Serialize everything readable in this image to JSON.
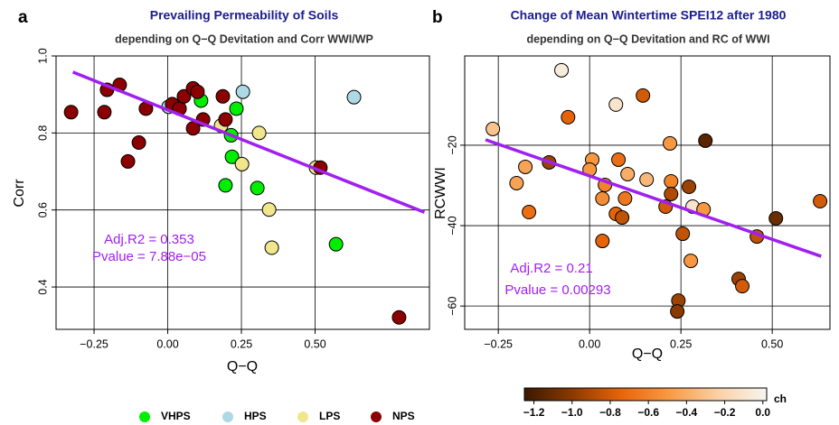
{
  "chart_data": [
    {
      "type": "scatter",
      "panel": "a",
      "title": "Prevailing Permeability of Soils",
      "subtitle": "depending on Q−Q Devitation and Corr WWI/WP",
      "x_label": "Q−Q",
      "y_label": "Corr",
      "xlim": [
        -0.379,
        0.888
      ],
      "ylim": [
        0.29,
        1.0
      ],
      "xticks": [
        {
          "value": -0.25,
          "label": "−0.25"
        },
        {
          "value": 0,
          "label": "0.00"
        },
        {
          "value": 0.25,
          "label": "0.25"
        },
        {
          "value": 0.5,
          "label": "0.50"
        }
      ],
      "yticks": [
        0.4,
        0.6,
        0.8,
        {
          "value": 1.0,
          "label": "1.0"
        }
      ],
      "grid": true,
      "series": [
        {
          "name": "VHPS",
          "color": "#00ee00",
          "x": [
            0.113,
            0.233,
            0.215,
            0.218,
            0.196,
            0.304,
            0.571
          ],
          "y": [
            0.884,
            0.863,
            0.794,
            0.738,
            0.664,
            0.657,
            0.511
          ]
        },
        {
          "name": "HPS",
          "color": "#add8e6",
          "x": [
            0.003,
            0.255,
            0.632
          ],
          "y": [
            0.868,
            0.907,
            0.893
          ]
        },
        {
          "name": "LPS",
          "color": "#f0e68c",
          "x": [
            0.181,
            0.31,
            0.252,
            0.344,
            0.353,
            0.503
          ],
          "y": [
            0.819,
            0.8,
            0.719,
            0.601,
            0.502,
            0.71
          ]
        },
        {
          "name": "NPS",
          "color": "#8b0000",
          "x": [
            -0.328,
            -0.206,
            -0.163,
            -0.215,
            -0.074,
            -0.098,
            -0.135,
            0.015,
            0.04,
            0.055,
            0.086,
            0.101,
            0.086,
            0.12,
            0.187,
            0.196,
            0.518,
            0.785
          ],
          "y": [
            0.854,
            0.912,
            0.925,
            0.854,
            0.863,
            0.775,
            0.726,
            0.875,
            0.863,
            0.895,
            0.916,
            0.907,
            0.812,
            0.835,
            0.895,
            0.835,
            0.71,
            0.321
          ]
        }
      ],
      "fit": {
        "color": "#a020f0",
        "x": [
          -0.322,
          0.871
        ],
        "y": [
          0.958,
          0.594
        ]
      },
      "annotations": [
        "Adj.R2 = 0.353",
        "Pvalue = 7.88e−05"
      ]
    },
    {
      "type": "scatter",
      "panel": "b",
      "title": "Change of Mean Wintertime SPEI12 after 1980",
      "subtitle": "depending on Q−Q Devitation and RC of WWI",
      "x_label": "Q−Q",
      "y_label": "RCWWI",
      "xlim": [
        -0.342,
        0.658
      ],
      "ylim": [
        -65.8,
        2.2
      ],
      "xticks": [
        {
          "value": -0.25,
          "label": "−0.25"
        },
        {
          "value": 0,
          "label": "0.00"
        },
        {
          "value": 0.25,
          "label": "0.25"
        },
        {
          "value": 0.5,
          "label": "0.50"
        }
      ],
      "yticks": [
        {
          "value": -20,
          "label": "−20"
        },
        {
          "value": -40,
          "label": "−40"
        },
        {
          "value": -60,
          "label": "−60"
        }
      ],
      "grid": true,
      "series": [
        {
          "x": [
            -0.077,
            -0.265,
            -0.059,
            0.072,
            0.146,
            0.317,
            0.22,
            -0.111,
            -0.176,
            -0.2,
            0.007,
            0.0,
            0.079,
            0.104,
            0.156,
            0.223,
            0.272,
            0.223,
            0.042,
            0.035,
            0.097,
            -0.166,
            0.072,
            0.089,
            0.208,
            0.282,
            0.312,
            0.51,
            0.631,
            0.035,
            0.255,
            0.458,
            0.277,
            0.243,
            0.24,
            0.408,
            0.418
          ],
          "y": [
            -1.35,
            -15.96,
            -13.03,
            -9.89,
            -7.64,
            -18.88,
            -19.55,
            -24.27,
            -25.39,
            -29.44,
            -23.6,
            -26.07,
            -23.6,
            -27.19,
            -28.54,
            -28.99,
            -30.34,
            -32.13,
            -29.89,
            -33.26,
            -33.26,
            -36.63,
            -37.08,
            -37.98,
            -35.28,
            -35.28,
            -35.96,
            -38.2,
            -33.93,
            -43.82,
            -42.02,
            -42.7,
            -48.76,
            -58.65,
            -61.35,
            -53.26,
            -55.06
          ],
          "ch": [
            -0.05,
            -0.3,
            -0.75,
            -0.1,
            -0.8,
            -1.15,
            -0.5,
            -0.95,
            -0.45,
            -0.45,
            -0.5,
            -0.5,
            -0.7,
            -0.4,
            -0.35,
            -0.6,
            -0.95,
            -0.9,
            -0.6,
            -0.55,
            -0.65,
            -0.7,
            -0.75,
            -0.85,
            -0.8,
            -0.1,
            -0.5,
            -1.1,
            -0.8,
            -0.75,
            -0.85,
            -0.85,
            -0.5,
            -0.95,
            -1.0,
            -0.95,
            -0.8
          ]
        }
      ],
      "fit": {
        "color": "#a020f0",
        "x": [
          -0.285,
          0.634
        ],
        "y": [
          -18.65,
          -47.64
        ]
      },
      "annotations": [
        "Adj.R2 = 0.21",
        "Pvalue = 0.00293"
      ],
      "colorbar": {
        "label": "ch",
        "lim": [
          -1.25,
          0.02
        ],
        "colors": [
          "#3a1800",
          "#8b3a00",
          "#e8650a",
          "#f89a45",
          "#fbd0a6",
          "#f6f6f0"
        ],
        "ticks": [
          {
            "value": -1.2,
            "label": "−1.2"
          },
          {
            "value": -1.0,
            "label": "−1.0"
          },
          {
            "value": -0.8,
            "label": "−0.8"
          },
          {
            "value": -0.6,
            "label": "−0.6"
          },
          {
            "value": -0.4,
            "label": "−0.4"
          },
          {
            "value": -0.2,
            "label": "−0.2"
          },
          {
            "value": 0.0,
            "label": "0.0"
          }
        ]
      }
    }
  ]
}
